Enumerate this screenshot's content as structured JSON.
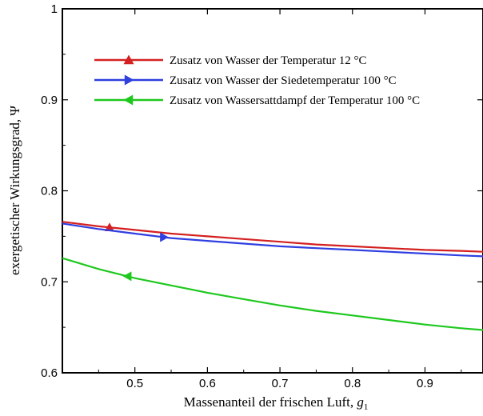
{
  "chart_data": {
    "type": "line",
    "xlabel": "Massenanteil der frischen Luft,",
    "xlabel_symbol": "g",
    "xlabel_subscript": "1",
    "ylabel": "exergetischer Wirkungsgrad, Ψ",
    "xlim": [
      0.4,
      0.98
    ],
    "ylim": [
      0.6,
      1.0
    ],
    "x_ticks": [
      0.5,
      0.6,
      0.7,
      0.8,
      0.9
    ],
    "x_tick_labels": [
      "0.5",
      "0.6",
      "0.7",
      "0.8",
      "0.9"
    ],
    "y_ticks": [
      0.6,
      0.7,
      0.8,
      0.9,
      1.0
    ],
    "y_tick_labels": [
      "0.6",
      "0.7",
      "0.8",
      "0.9",
      "1"
    ],
    "grid": false,
    "legend_position": "top-right",
    "series": [
      {
        "name": "Zusatz von Wasser der Temperatur 12 °C",
        "color": "#d42020",
        "marker": "triangle-up",
        "marker_x": 0.465,
        "x": [
          0.4,
          0.45,
          0.5,
          0.55,
          0.6,
          0.65,
          0.7,
          0.75,
          0.8,
          0.85,
          0.9,
          0.95,
          0.98
        ],
        "y": [
          0.766,
          0.761,
          0.757,
          0.753,
          0.75,
          0.747,
          0.744,
          0.741,
          0.739,
          0.737,
          0.735,
          0.734,
          0.733
        ]
      },
      {
        "name": "Zusatz von Wasser der Siedetemperatur 100 °C",
        "color": "#2f3fe0",
        "marker": "triangle-right",
        "marker_x": 0.54,
        "x": [
          0.4,
          0.45,
          0.5,
          0.55,
          0.6,
          0.65,
          0.7,
          0.75,
          0.8,
          0.85,
          0.9,
          0.95,
          0.98
        ],
        "y": [
          0.764,
          0.758,
          0.753,
          0.748,
          0.745,
          0.742,
          0.739,
          0.737,
          0.735,
          0.733,
          0.731,
          0.729,
          0.728
        ]
      },
      {
        "name": "Zusatz von Wassersattdampf der Temperatur 100 °C",
        "color": "#1ec81e",
        "marker": "triangle-left",
        "marker_x": 0.49,
        "x": [
          0.4,
          0.45,
          0.5,
          0.55,
          0.6,
          0.65,
          0.7,
          0.75,
          0.8,
          0.85,
          0.9,
          0.95,
          0.98
        ],
        "y": [
          0.726,
          0.714,
          0.704,
          0.696,
          0.688,
          0.681,
          0.674,
          0.668,
          0.663,
          0.658,
          0.653,
          0.649,
          0.647
        ]
      }
    ]
  }
}
